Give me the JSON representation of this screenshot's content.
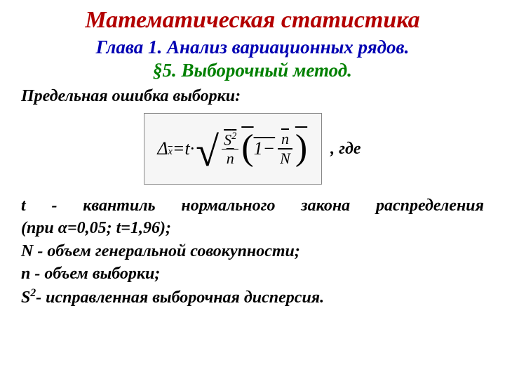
{
  "colors": {
    "title": "#b30000",
    "chapter": "#0000b3",
    "section": "#008000",
    "body": "#000000",
    "formula_bg": "#f6f6f6",
    "formula_border": "#888888",
    "page_bg": "#ffffff"
  },
  "typography": {
    "title_fontsize": 34,
    "chapter_fontsize": 27,
    "section_fontsize": 27,
    "body_fontsize": 24,
    "font_family": "Times New Roman",
    "italic": true,
    "bold": true
  },
  "header": {
    "title": "Математическая статистика",
    "chapter": "Глава 1. Анализ вариационных рядов.",
    "section": "§5.    Выборочный метод."
  },
  "subheading": "Предельная ошибка выборки:",
  "formula": {
    "lhs_delta": "Δ",
    "lhs_subbar": "x",
    "eq": " = ",
    "t": "t",
    "dot": " · ",
    "S2": "S",
    "sup2": "2",
    "n": "n",
    "one": "1",
    "minus": " − ",
    "N": "N"
  },
  "where": ", где",
  "definitions": {
    "line1a": "t",
    "line1b": " - квантиль нормального закона распределения",
    "line2": "(при α=0,05; t=1,96);",
    "line3": "N - объем генеральной совокупности;",
    "line4": "n - объем выборки;",
    "line5a": "S",
    "line5b": "- исправленная выборочная дисперсия."
  }
}
